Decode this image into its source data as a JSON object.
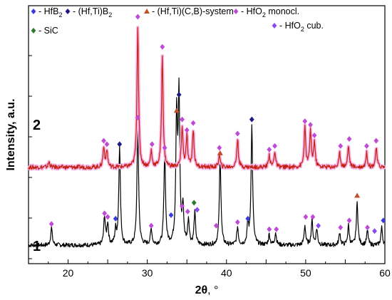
{
  "chart_data": {
    "type": "line",
    "xlabel_main": "2θ",
    "xlabel_unit": ", °",
    "ylabel": "Intensity, a.u.",
    "xlim": [
      15,
      60
    ],
    "xticks": [
      20,
      30,
      40,
      50,
      60
    ],
    "yticks_shown": false,
    "legend": [
      {
        "symbol": "diamond",
        "color": "#3b3bdc",
        "label": "- HfB",
        "sub": "2",
        "label_after": ""
      },
      {
        "symbol": "diamond",
        "color": "#1a1a80",
        "label": "- (Hf,Ti)B",
        "sub": "2",
        "label_after": ""
      },
      {
        "symbol": "triangle",
        "color": "#c0502a",
        "label": "- (Hf,Ti)(C,B)-system",
        "sub": "",
        "label_after": ""
      },
      {
        "symbol": "diamond",
        "color": "#c04ad8",
        "label": "- HfO",
        "sub": "2",
        "label_after": " monocl."
      },
      {
        "symbol": "diamond",
        "color": "#2d7a2d",
        "label": "- SiC",
        "sub": "",
        "label_after": ""
      },
      {
        "symbol": "diamond",
        "color": "#8a4af0",
        "label": "- HfO",
        "sub": "2",
        "label_after": " cub."
      }
    ],
    "series": [
      {
        "name": "1",
        "color": "#000000",
        "baseline": 8,
        "peaks": [
          {
            "x": 17.9,
            "h": 10
          },
          {
            "x": 24.6,
            "h": 16
          },
          {
            "x": 25.0,
            "h": 12
          },
          {
            "x": 26.0,
            "h": 8
          },
          {
            "x": 26.5,
            "h": 56
          },
          {
            "x": 28.8,
            "h": 70
          },
          {
            "x": 30.5,
            "h": 9
          },
          {
            "x": 32.2,
            "h": 52
          },
          {
            "x": 33.7,
            "h": 72
          },
          {
            "x": 34.0,
            "h": 82
          },
          {
            "x": 34.5,
            "h": 20
          },
          {
            "x": 35.2,
            "h": 14
          },
          {
            "x": 36.0,
            "h": 18
          },
          {
            "x": 39.2,
            "h": 50
          },
          {
            "x": 41.4,
            "h": 10
          },
          {
            "x": 42.7,
            "h": 11
          },
          {
            "x": 43.2,
            "h": 67
          },
          {
            "x": 45.4,
            "h": 6
          },
          {
            "x": 46.2,
            "h": 7
          },
          {
            "x": 49.9,
            "h": 11
          },
          {
            "x": 50.8,
            "h": 14
          },
          {
            "x": 51.4,
            "h": 9
          },
          {
            "x": 54.3,
            "h": 7
          },
          {
            "x": 55.4,
            "h": 11
          },
          {
            "x": 56.5,
            "h": 24
          },
          {
            "x": 57.8,
            "h": 8
          },
          {
            "x": 59.6,
            "h": 10
          }
        ]
      },
      {
        "name": "2",
        "color": "#c62010",
        "baseline": 52,
        "peaks": [
          {
            "x": 17.6,
            "h": 3
          },
          {
            "x": 24.5,
            "h": 11
          },
          {
            "x": 24.9,
            "h": 9
          },
          {
            "x": 28.8,
            "h": 80
          },
          {
            "x": 30.5,
            "h": 9
          },
          {
            "x": 31.9,
            "h": 63
          },
          {
            "x": 34.4,
            "h": 23
          },
          {
            "x": 35.0,
            "h": 17
          },
          {
            "x": 35.8,
            "h": 21
          },
          {
            "x": 39.1,
            "h": 7
          },
          {
            "x": 41.4,
            "h": 16
          },
          {
            "x": 45.4,
            "h": 7
          },
          {
            "x": 46.1,
            "h": 9
          },
          {
            "x": 49.9,
            "h": 22
          },
          {
            "x": 50.6,
            "h": 20
          },
          {
            "x": 51.1,
            "h": 14
          },
          {
            "x": 54.3,
            "h": 8
          },
          {
            "x": 55.4,
            "h": 12
          },
          {
            "x": 57.7,
            "h": 8
          },
          {
            "x": 58.9,
            "h": 11
          }
        ]
      }
    ],
    "markers": [
      {
        "x": 17.9,
        "y": 20,
        "color": "#c04ad8",
        "shape": "diamond"
      },
      {
        "x": 24.6,
        "y": 26,
        "color": "#c04ad8",
        "shape": "diamond"
      },
      {
        "x": 25.0,
        "y": 24,
        "color": "#c04ad8",
        "shape": "diamond"
      },
      {
        "x": 26.0,
        "y": 23,
        "color": "#3b3bdc",
        "shape": "diamond"
      },
      {
        "x": 26.5,
        "y": 65,
        "color": "#1a1a80",
        "shape": "diamond"
      },
      {
        "x": 28.8,
        "y": 80,
        "color": "#c04ad8",
        "shape": "diamond"
      },
      {
        "x": 30.5,
        "y": 19,
        "color": "#c04ad8",
        "shape": "diamond"
      },
      {
        "x": 32.2,
        "y": 63,
        "color": "#c04ad8",
        "shape": "diamond"
      },
      {
        "x": 33.0,
        "y": 25,
        "color": "#3b3bdc",
        "shape": "diamond"
      },
      {
        "x": 33.7,
        "y": 84,
        "color": "#c0502a",
        "shape": "triangle"
      },
      {
        "x": 34.0,
        "y": 93,
        "color": "#1a1a80",
        "shape": "diamond"
      },
      {
        "x": 34.4,
        "y": 30,
        "color": "#c04ad8",
        "shape": "diamond"
      },
      {
        "x": 35.1,
        "y": 27,
        "color": "#c04ad8",
        "shape": "diamond"
      },
      {
        "x": 35.9,
        "y": 32,
        "color": "#2d7a2d",
        "shape": "diamond"
      },
      {
        "x": 36.3,
        "y": 28,
        "color": "#8a4af0",
        "shape": "diamond"
      },
      {
        "x": 38.7,
        "y": 19,
        "color": "#c04ad8",
        "shape": "diamond"
      },
      {
        "x": 39.2,
        "y": 60,
        "color": "#c0502a",
        "shape": "triangle"
      },
      {
        "x": 41.4,
        "y": 21,
        "color": "#c04ad8",
        "shape": "diamond"
      },
      {
        "x": 42.7,
        "y": 23,
        "color": "#3b3bdc",
        "shape": "diamond"
      },
      {
        "x": 43.2,
        "y": 79,
        "color": "#1a1a80",
        "shape": "diamond"
      },
      {
        "x": 45.4,
        "y": 17,
        "color": "#c04ad8",
        "shape": "diamond"
      },
      {
        "x": 46.3,
        "y": 17,
        "color": "#c04ad8",
        "shape": "diamond"
      },
      {
        "x": 50.0,
        "y": 24,
        "color": "#c04ad8",
        "shape": "diamond"
      },
      {
        "x": 50.9,
        "y": 24,
        "color": "#c04ad8",
        "shape": "diamond"
      },
      {
        "x": 51.6,
        "y": 19,
        "color": "#8a4af0",
        "shape": "diamond"
      },
      {
        "x": 54.4,
        "y": 18,
        "color": "#c04ad8",
        "shape": "diamond"
      },
      {
        "x": 55.5,
        "y": 22,
        "color": "#c04ad8",
        "shape": "diamond"
      },
      {
        "x": 56.5,
        "y": 36,
        "color": "#c0502a",
        "shape": "triangle"
      },
      {
        "x": 57.8,
        "y": 18,
        "color": "#c04ad8",
        "shape": "diamond"
      },
      {
        "x": 58.7,
        "y": 16,
        "color": "#8a4af0",
        "shape": "diamond"
      },
      {
        "x": 59.8,
        "y": 22,
        "color": "#3b3bdc",
        "shape": "diamond"
      },
      {
        "x": 24.5,
        "y": 67,
        "color": "#c04ad8",
        "shape": "diamond"
      },
      {
        "x": 24.9,
        "y": 65,
        "color": "#c04ad8",
        "shape": "diamond"
      },
      {
        "x": 28.8,
        "y": 137,
        "color": "#c04ad8",
        "shape": "diamond"
      },
      {
        "x": 30.6,
        "y": 65,
        "color": "#c04ad8",
        "shape": "diamond"
      },
      {
        "x": 31.9,
        "y": 120,
        "color": "#c04ad8",
        "shape": "diamond"
      },
      {
        "x": 34.4,
        "y": 79,
        "color": "#c04ad8",
        "shape": "diamond"
      },
      {
        "x": 35.0,
        "y": 73,
        "color": "#c04ad8",
        "shape": "diamond"
      },
      {
        "x": 35.8,
        "y": 77,
        "color": "#c04ad8",
        "shape": "diamond"
      },
      {
        "x": 39.1,
        "y": 63,
        "color": "#c04ad8",
        "shape": "diamond"
      },
      {
        "x": 41.4,
        "y": 71,
        "color": "#c04ad8",
        "shape": "diamond"
      },
      {
        "x": 45.4,
        "y": 62,
        "color": "#c04ad8",
        "shape": "diamond"
      },
      {
        "x": 46.1,
        "y": 64,
        "color": "#c04ad8",
        "shape": "diamond"
      },
      {
        "x": 49.9,
        "y": 78,
        "color": "#c04ad8",
        "shape": "diamond"
      },
      {
        "x": 50.6,
        "y": 76,
        "color": "#c04ad8",
        "shape": "diamond"
      },
      {
        "x": 51.1,
        "y": 70,
        "color": "#c04ad8",
        "shape": "diamond"
      },
      {
        "x": 54.4,
        "y": 64,
        "color": "#c04ad8",
        "shape": "diamond"
      },
      {
        "x": 55.5,
        "y": 68,
        "color": "#c04ad8",
        "shape": "diamond"
      },
      {
        "x": 57.7,
        "y": 64,
        "color": "#c04ad8",
        "shape": "diamond"
      },
      {
        "x": 58.9,
        "y": 67,
        "color": "#c04ad8",
        "shape": "diamond"
      }
    ],
    "ymax": 140,
    "grid": false
  }
}
